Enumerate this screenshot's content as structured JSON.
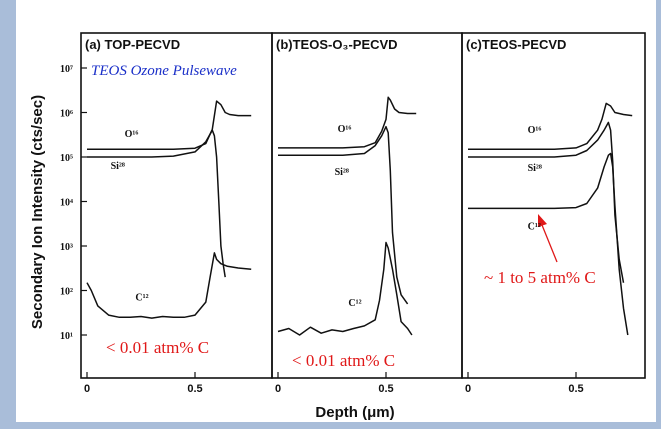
{
  "chart_data": {
    "type": "line",
    "ylabel": "Secondary Ion Intensity (cts/sec)",
    "xlabel": "Depth (μm)",
    "yscale": "log",
    "ylim": [
      5,
      20000000
    ],
    "y_tick_labels": [
      "10¹",
      "10²",
      "10³",
      "10⁴",
      "10⁵",
      "10⁶",
      "10⁷"
    ],
    "y_tick_values": [
      10,
      100,
      1000,
      10000,
      100000,
      1000000,
      10000000
    ],
    "panels": [
      {
        "title": "(a) TOP-PECVD",
        "xlim": [
          0,
          0.85
        ],
        "x_ticks": [
          0,
          0.5
        ],
        "x_tick_labels": [
          "0",
          "0.5"
        ],
        "annotations": [
          {
            "text": "TEOS Ozone Pulsewave",
            "color": "#1a2fc8"
          },
          {
            "text": "< 0.01 atm% C",
            "color": "#e01818"
          }
        ],
        "series": [
          {
            "name": "O¹⁶",
            "x": [
              0,
              0.1,
              0.2,
              0.3,
              0.4,
              0.5,
              0.55,
              0.58,
              0.6,
              0.62,
              0.64,
              0.66,
              0.7,
              0.76
            ],
            "y": [
              150000,
              150000,
              150000,
              150000,
              150000,
              158000,
              200000,
              420000,
              1800000,
              1500000,
              1000000,
              900000,
              850000,
              850000
            ]
          },
          {
            "name": "Si²⁸",
            "x": [
              0,
              0.1,
              0.2,
              0.3,
              0.4,
              0.5,
              0.55,
              0.58,
              0.59,
              0.6,
              0.61,
              0.62,
              0.63,
              0.64
            ],
            "y": [
              100000,
              100000,
              100000,
              100000,
              105000,
              130000,
              220000,
              400000,
              300000,
              100000,
              10000,
              1000,
              400,
              200
            ]
          },
          {
            "name": "C¹²",
            "x": [
              0,
              0.02,
              0.05,
              0.1,
              0.15,
              0.2,
              0.25,
              0.3,
              0.35,
              0.4,
              0.45,
              0.5,
              0.55,
              0.57,
              0.59,
              0.6,
              0.62,
              0.65,
              0.7,
              0.76
            ],
            "y": [
              150,
              100,
              45,
              28,
              25,
              25,
              26,
              24,
              26,
              25,
              25,
              28,
              55,
              200,
              700,
              500,
              400,
              350,
              320,
              300
            ]
          }
        ]
      },
      {
        "title": "(b)TEOS-O₃-PECVD",
        "xlim": [
          0,
          0.85
        ],
        "x_ticks": [
          0,
          0.5
        ],
        "x_tick_labels": [
          "0",
          "0.5"
        ],
        "annotations": [
          {
            "text": "< 0.01 atm% C",
            "color": "#e01818"
          }
        ],
        "series": [
          {
            "name": "O¹⁶",
            "x": [
              0,
              0.1,
              0.2,
              0.3,
              0.4,
              0.45,
              0.48,
              0.5,
              0.51,
              0.52,
              0.54,
              0.56,
              0.6,
              0.64
            ],
            "y": [
              160000,
              160000,
              160000,
              160000,
              170000,
              210000,
              380000,
              700000,
              2200000,
              1900000,
              1200000,
              1000000,
              950000,
              950000
            ]
          },
          {
            "name": "Si²⁸",
            "x": [
              0,
              0.1,
              0.2,
              0.3,
              0.4,
              0.45,
              0.48,
              0.5,
              0.51,
              0.52,
              0.53,
              0.55,
              0.57,
              0.6
            ],
            "y": [
              110000,
              110000,
              110000,
              110000,
              120000,
              180000,
              300000,
              480000,
              350000,
              50000,
              2000,
              200,
              80,
              50
            ]
          },
          {
            "name": "C¹²",
            "x": [
              0,
              0.05,
              0.1,
              0.15,
              0.2,
              0.25,
              0.3,
              0.35,
              0.4,
              0.45,
              0.47,
              0.49,
              0.5,
              0.51,
              0.53,
              0.55,
              0.57,
              0.6,
              0.62
            ],
            "y": [
              12,
              14,
              10,
              15,
              11,
              13,
              12,
              14,
              16,
              22,
              60,
              300,
              1200,
              900,
              300,
              80,
              20,
              14,
              10
            ]
          }
        ]
      },
      {
        "title": "(c)TEOS-PECVD",
        "xlim": [
          0,
          0.85
        ],
        "x_ticks": [
          0,
          0.5
        ],
        "x_tick_labels": [
          "0",
          "0.5"
        ],
        "annotations": [
          {
            "text": "~ 1 to 5 atm% C",
            "color": "#e01818"
          }
        ],
        "series": [
          {
            "name": "O¹⁶",
            "x": [
              0,
              0.1,
              0.2,
              0.3,
              0.4,
              0.5,
              0.55,
              0.6,
              0.62,
              0.64,
              0.66,
              0.68,
              0.72,
              0.76
            ],
            "y": [
              150000,
              150000,
              150000,
              150000,
              150000,
              160000,
              200000,
              400000,
              700000,
              1600000,
              1400000,
              1000000,
              900000,
              850000
            ]
          },
          {
            "name": "Si²⁸",
            "x": [
              0,
              0.1,
              0.2,
              0.3,
              0.4,
              0.5,
              0.55,
              0.6,
              0.63,
              0.65,
              0.66,
              0.67,
              0.68,
              0.7,
              0.72
            ],
            "y": [
              100000,
              100000,
              100000,
              100000,
              100000,
              110000,
              140000,
              240000,
              400000,
              600000,
              400000,
              80000,
              5000,
              500,
              150
            ]
          },
          {
            "name": "C¹²",
            "x": [
              0,
              0.1,
              0.2,
              0.3,
              0.4,
              0.5,
              0.55,
              0.6,
              0.63,
              0.65,
              0.66,
              0.67,
              0.68,
              0.7,
              0.72,
              0.74
            ],
            "y": [
              7000,
              7000,
              7000,
              7000,
              7000,
              7300,
              9000,
              20000,
              60000,
              110000,
              120000,
              60000,
              8000,
              300,
              40,
              10
            ]
          }
        ]
      }
    ]
  }
}
